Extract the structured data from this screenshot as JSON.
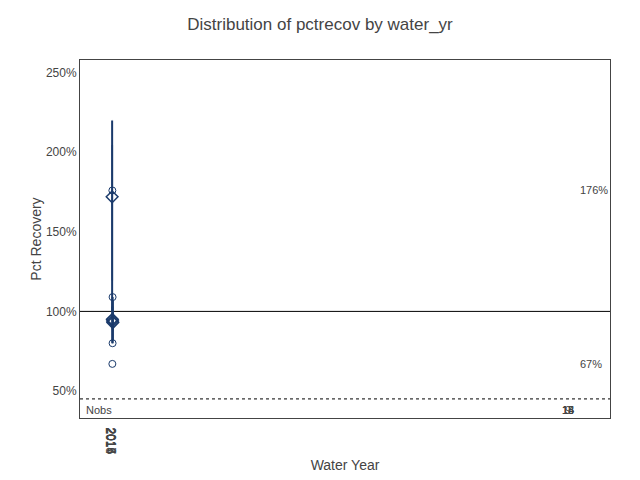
{
  "chart_data": {
    "type": "box",
    "title": "Distribution of pctrecov by water_yr",
    "xlabel": "Water Year",
    "ylabel": "Pct Recovery",
    "categories": [
      2014,
      2015,
      2016,
      2017
    ],
    "q1": [
      120,
      89,
      93,
      88
    ],
    "median": [
      193,
      92,
      97,
      94
    ],
    "q3": [
      204,
      97,
      99,
      97
    ],
    "whisker_low": [
      100,
      80,
      80,
      82
    ],
    "whisker_high": [
      220,
      103,
      109,
      107
    ],
    "mean": [
      172,
      95,
      94,
      93
    ],
    "outliers": [
      [],
      [
        176,
        67
      ],
      [
        109,
        80
      ],
      []
    ],
    "nobs": [
      9,
      14,
      13,
      15
    ],
    "nobs_label": "Nobs",
    "annotations": [
      {
        "text": "176%",
        "x": 2015,
        "y": 176
      },
      {
        "text": "67%",
        "x": 2015,
        "y": 67
      }
    ],
    "reference_lines": [
      100,
      45
    ],
    "ylim": [
      33,
      258
    ],
    "yticks": [
      {
        "value": 50,
        "label": "50%"
      },
      {
        "value": 100,
        "label": "100%"
      },
      {
        "value": 150,
        "label": "150%"
      },
      {
        "value": 200,
        "label": "200%"
      },
      {
        "value": 250,
        "label": "250%"
      }
    ],
    "grid": false,
    "color": "#1a3a6b"
  }
}
